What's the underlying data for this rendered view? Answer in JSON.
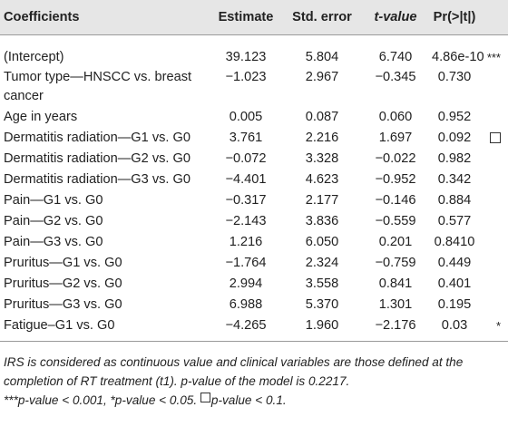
{
  "table": {
    "headers": [
      {
        "label": "Coefficients"
      },
      {
        "label": "Estimate"
      },
      {
        "label": "Std. error"
      },
      {
        "label": "t-value"
      },
      {
        "label": "Pr(>|t|)"
      },
      {
        "label": ""
      }
    ],
    "rows": [
      {
        "name": "(Intercept)",
        "estimate": "39.123",
        "std_error": "5.804",
        "t_value": "6.740",
        "p": "4.86e-10",
        "sig": "***"
      },
      {
        "name": "Tumor type—HNSCC vs. breast cancer",
        "estimate": "−1.023",
        "std_error": "2.967",
        "t_value": "−0.345",
        "p": "0.730",
        "sig": ""
      },
      {
        "name": "Age in years",
        "estimate": "0.005",
        "std_error": "0.087",
        "t_value": "0.060",
        "p": "0.952",
        "sig": ""
      },
      {
        "name": "Dermatitis radiation—G1 vs. G0",
        "estimate": "3.761",
        "std_error": "2.216",
        "t_value": "1.697",
        "p": "0.092",
        "sig": "box"
      },
      {
        "name": "Dermatitis radiation—G2 vs. G0",
        "estimate": "−0.072",
        "std_error": "3.328",
        "t_value": "−0.022",
        "p": "0.982",
        "sig": ""
      },
      {
        "name": "Dermatitis radiation—G3 vs. G0",
        "estimate": "−4.401",
        "std_error": "4.623",
        "t_value": "−0.952",
        "p": "0.342",
        "sig": ""
      },
      {
        "name": "Pain—G1 vs. G0",
        "estimate": "−0.317",
        "std_error": "2.177",
        "t_value": "−0.146",
        "p": "0.884",
        "sig": ""
      },
      {
        "name": "Pain—G2 vs. G0",
        "estimate": "−2.143",
        "std_error": "3.836",
        "t_value": "−0.559",
        "p": "0.577",
        "sig": ""
      },
      {
        "name": "Pain—G3 vs. G0",
        "estimate": "1.216",
        "std_error": "6.050",
        "t_value": "0.201",
        "p": "0.8410",
        "sig": ""
      },
      {
        "name": "Pruritus—G1 vs. G0",
        "estimate": "−1.764",
        "std_error": "2.324",
        "t_value": "−0.759",
        "p": "0.449",
        "sig": ""
      },
      {
        "name": "Pruritus—G2 vs. G0",
        "estimate": "2.994",
        "std_error": "3.558",
        "t_value": "0.841",
        "p": "0.401",
        "sig": ""
      },
      {
        "name": "Pruritus—G3 vs. G0",
        "estimate": "6.988",
        "std_error": "5.370",
        "t_value": "1.301",
        "p": "0.195",
        "sig": ""
      },
      {
        "name": "Fatigue–G1 vs. G0",
        "estimate": "−4.265",
        "std_error": "1.960",
        "t_value": "−2.176",
        "p": "0.03",
        "sig": "*"
      }
    ]
  },
  "notes": {
    "line1": "IRS is considered as continuous value and clinical variables are those defined at the completion of RT treatment (t1). p-value of the model is 0.2217.",
    "line2_a": "***p-value < 0.001, *p-value < 0.05. ",
    "line2_b": "p-value < 0.1."
  }
}
